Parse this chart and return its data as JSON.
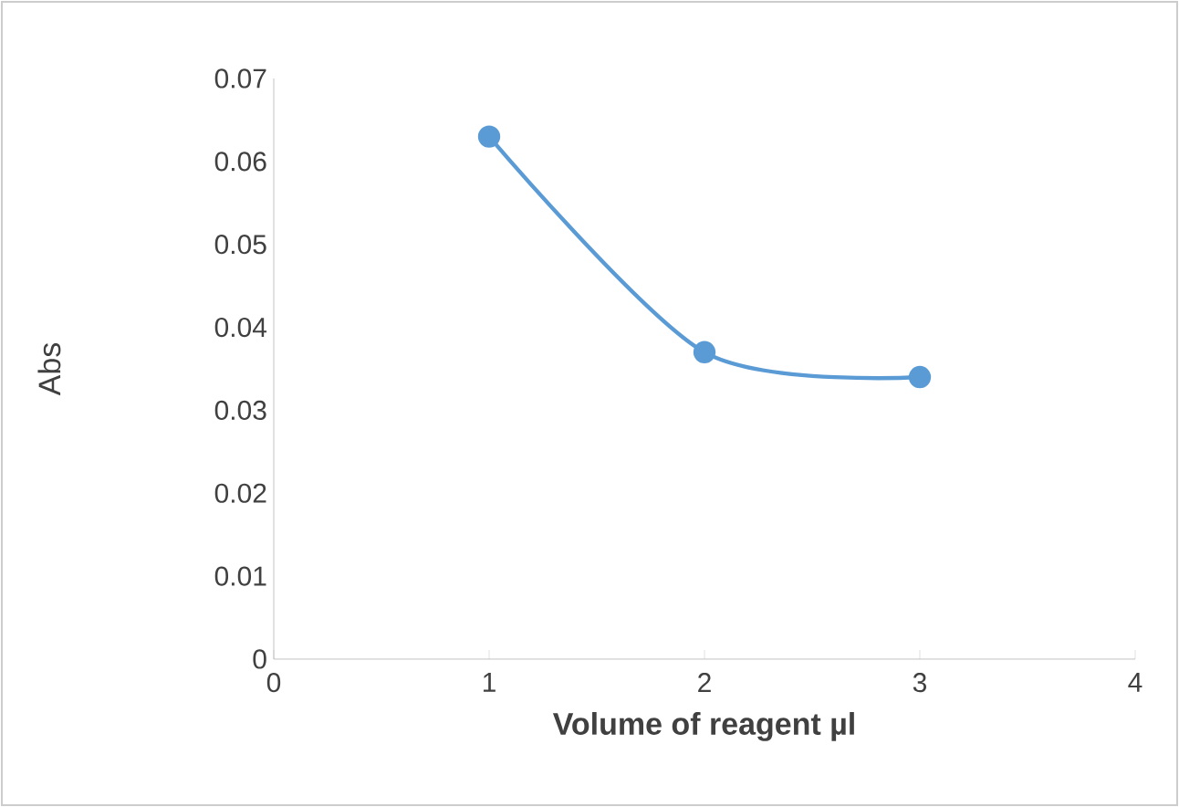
{
  "chart_data": {
    "type": "line",
    "xlabel": "Volume of reagent µl",
    "ylabel": "Abs",
    "x": [
      1,
      2,
      3
    ],
    "series": [
      {
        "color": "#5b9bd5",
        "values": [
          0.063,
          0.037,
          0.034
        ]
      }
    ],
    "xlim": [
      0,
      4
    ],
    "xticks": [
      0,
      1,
      2,
      3,
      4
    ],
    "ylim": [
      0,
      0.07
    ],
    "yticks": [
      0,
      0.01,
      0.02,
      0.03,
      0.04,
      0.05,
      0.06,
      0.07
    ],
    "grid": false,
    "marker": "circle",
    "line_style": "solid"
  }
}
